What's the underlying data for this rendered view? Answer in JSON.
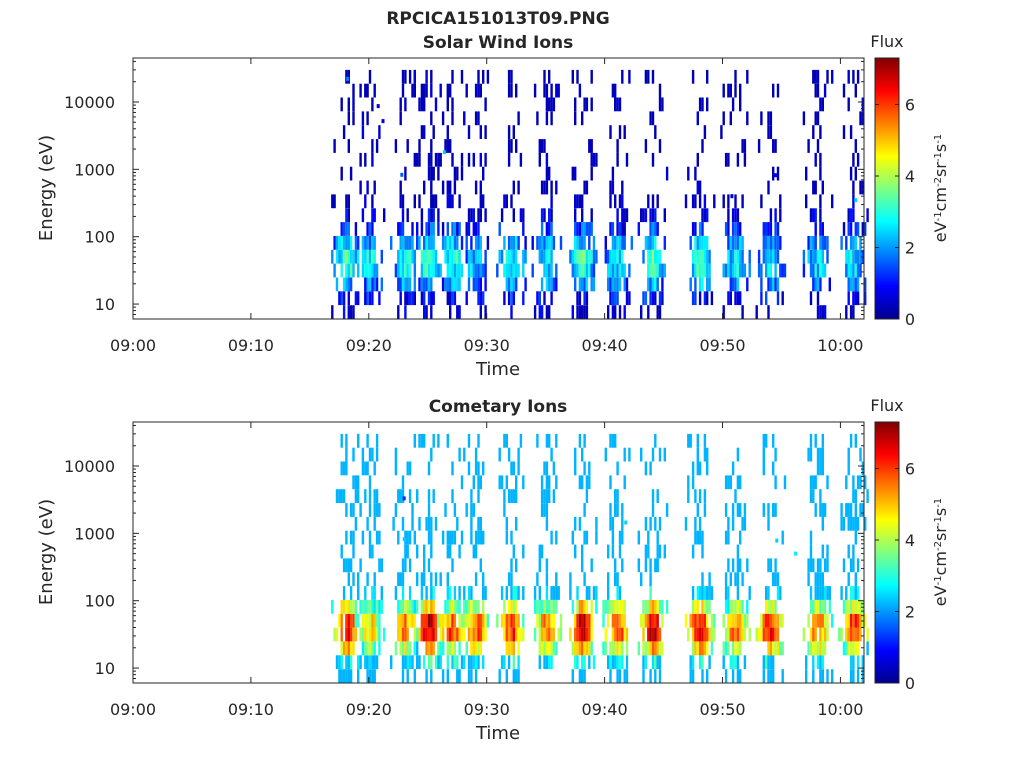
{
  "figure_title": "RPCICA151013T09.PNG",
  "chart_data": [
    {
      "type": "heatmap",
      "title": "Solar Wind Ions",
      "xlabel": "Time",
      "ylabel": "Energy (eV)",
      "yscale": "log",
      "ylim": [
        6,
        45000
      ],
      "xlim": [
        "09:00",
        "10:02"
      ],
      "xticks": [
        "09:00",
        "09:10",
        "09:20",
        "09:30",
        "09:40",
        "09:50",
        "10:00"
      ],
      "yticks": [
        10,
        100,
        1000,
        10000
      ],
      "ytick_labels": [
        "10",
        "100",
        "1000",
        "10000"
      ],
      "grid": false,
      "colorbar": {
        "title": "Flux",
        "label": "eV-1cm-2sr-1s-1",
        "range": [
          0,
          7.3
        ],
        "ticks": [
          0,
          2,
          4,
          6
        ],
        "tick_labels": [
          "0",
          "2",
          "4",
          "6"
        ],
        "colormap": "jet"
      },
      "bursts": [
        {
          "t": "09:18",
          "intensity": 3.2
        },
        {
          "t": "09:20",
          "intensity": 2.6
        },
        {
          "t": "09:23",
          "intensity": 2.8
        },
        {
          "t": "09:25",
          "intensity": 3.2
        },
        {
          "t": "09:27",
          "intensity": 3.0
        },
        {
          "t": "09:29",
          "intensity": 2.4
        },
        {
          "t": "09:32",
          "intensity": 2.8
        },
        {
          "t": "09:35",
          "intensity": 2.8
        },
        {
          "t": "09:38",
          "intensity": 3.2
        },
        {
          "t": "09:41",
          "intensity": 2.7
        },
        {
          "t": "09:44",
          "intensity": 3.2
        },
        {
          "t": "09:48",
          "intensity": 3.3
        },
        {
          "t": "09:51",
          "intensity": 2.7
        },
        {
          "t": "09:54",
          "intensity": 2.6
        },
        {
          "t": "09:58",
          "intensity": 2.5
        },
        {
          "t": "10:01",
          "intensity": 2.6
        }
      ],
      "isolated_points": [
        {
          "t": "09:18.2",
          "energy": 22000,
          "flux": 1.8
        },
        {
          "t": "09:20.8",
          "energy": 8700,
          "flux": 0.6
        },
        {
          "t": "09:21.2",
          "energy": 5200,
          "flux": 0.6
        },
        {
          "t": "09:22.8",
          "energy": 830,
          "flux": 1.6
        },
        {
          "t": "09:26.4",
          "energy": 1800,
          "flux": 2.4
        },
        {
          "t": "09:50.8",
          "energy": 400,
          "flux": 0.6
        },
        {
          "t": "09:54.5",
          "energy": 820,
          "flux": 0.6
        },
        {
          "t": "10:01.3",
          "energy": 350,
          "flux": 2.4
        }
      ]
    },
    {
      "type": "heatmap",
      "title": "Cometary Ions",
      "xlabel": "Time",
      "ylabel": "Energy (eV)",
      "yscale": "log",
      "ylim": [
        6,
        45000
      ],
      "xlim": [
        "09:00",
        "10:02"
      ],
      "xticks": [
        "09:00",
        "09:10",
        "09:20",
        "09:30",
        "09:40",
        "09:50",
        "10:00"
      ],
      "yticks": [
        10,
        100,
        1000,
        10000
      ],
      "ytick_labels": [
        "10",
        "100",
        "1000",
        "10000"
      ],
      "grid": false,
      "colorbar": {
        "title": "Flux",
        "label": "eV-1cm-2sr-1s-1",
        "range": [
          0,
          7.3
        ],
        "ticks": [
          0,
          2,
          4,
          6
        ],
        "tick_labels": [
          "0",
          "2",
          "4",
          "6"
        ],
        "colormap": "jet"
      },
      "bursts": [
        {
          "t": "09:18",
          "intensity": 6.8
        },
        {
          "t": "09:20",
          "intensity": 5.0
        },
        {
          "t": "09:23",
          "intensity": 5.6
        },
        {
          "t": "09:25",
          "intensity": 7.0
        },
        {
          "t": "09:27",
          "intensity": 6.0
        },
        {
          "t": "09:29",
          "intensity": 6.0
        },
        {
          "t": "09:32",
          "intensity": 6.2
        },
        {
          "t": "09:35",
          "intensity": 5.6
        },
        {
          "t": "09:38",
          "intensity": 7.0
        },
        {
          "t": "09:41",
          "intensity": 6.2
        },
        {
          "t": "09:44",
          "intensity": 7.0
        },
        {
          "t": "09:48",
          "intensity": 6.8
        },
        {
          "t": "09:51",
          "intensity": 5.6
        },
        {
          "t": "09:54",
          "intensity": 6.6
        },
        {
          "t": "09:58",
          "intensity": 5.8
        },
        {
          "t": "10:01",
          "intensity": 6.2
        }
      ],
      "isolated_points": [
        {
          "t": "09:23.0",
          "energy": 3300,
          "flux": 1.2
        },
        {
          "t": "09:23.0",
          "energy": 820,
          "flux": 2.4
        },
        {
          "t": "09:41.8",
          "energy": 1450,
          "flux": 2.4
        },
        {
          "t": "09:54.6",
          "energy": 780,
          "flux": 2.4
        },
        {
          "t": "09:56.2",
          "energy": 500,
          "flux": 2.6
        }
      ]
    }
  ]
}
